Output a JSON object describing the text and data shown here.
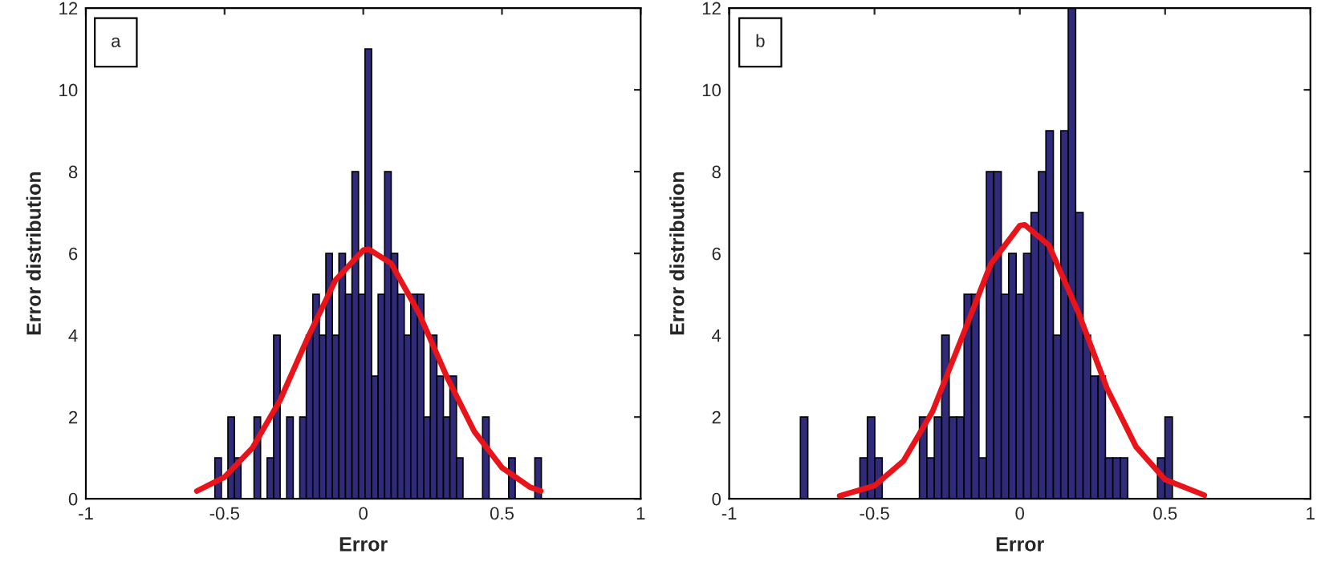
{
  "chart_data": [
    {
      "type": "histogram",
      "xlabel": "Error",
      "ylabel": "Error distribution",
      "annotations": [
        "a"
      ],
      "bins": [
        -0.535,
        -0.5115,
        -0.4879,
        -0.4644,
        -0.4408,
        -0.4173,
        -0.3938,
        -0.3702,
        -0.3467,
        -0.3231,
        -0.2996,
        -0.2761,
        -0.2525,
        -0.229,
        -0.2054,
        -0.1819,
        -0.1584,
        -0.1348,
        -0.1113,
        -0.0877,
        -0.0642,
        -0.0407,
        -0.0171,
        0.0064,
        0.03,
        0.0535,
        0.077,
        0.1006,
        0.1241,
        0.1477,
        0.1712,
        0.1947,
        0.2183,
        0.2418,
        0.2654,
        0.2889,
        0.3124,
        0.336,
        0.3595,
        0.3831,
        0.4066,
        0.4301,
        0.4537,
        0.4772,
        0.5008,
        0.5243,
        0.5478,
        0.5714,
        0.5949,
        0.6185,
        0.642
      ],
      "series": [
        {
          "color": "#2f2a7a",
          "values": [
            1,
            0,
            2,
            1,
            0,
            0,
            2,
            0,
            1,
            4,
            0,
            2,
            0,
            2,
            4,
            5,
            4,
            6,
            4,
            6,
            5,
            8,
            5,
            11,
            3,
            5,
            8,
            6,
            5,
            4,
            5,
            5,
            2,
            4,
            3,
            2,
            3,
            1,
            0,
            0,
            0,
            2,
            0,
            0,
            0,
            1,
            0,
            0,
            0,
            1
          ]
        },
        {
          "type": "line",
          "color": "#e8141a",
          "x": [
            -0.6,
            -0.5,
            -0.4,
            -0.3,
            -0.2,
            -0.1,
            0,
            0.02,
            0.1,
            0.2,
            0.3,
            0.4,
            0.5,
            0.6,
            0.64
          ],
          "values": [
            0.19,
            0.53,
            1.24,
            2.41,
            3.94,
            5.35,
            6.08,
            6.1,
            5.76,
            4.55,
            3.0,
            1.65,
            0.76,
            0.29,
            0.19
          ]
        }
      ],
      "xlim": [
        -1,
        1
      ],
      "xticks": [
        -1,
        -0.5,
        0,
        0.5,
        1
      ],
      "ylim": [
        0,
        12
      ],
      "yticks": [
        0,
        2,
        4,
        6,
        8,
        10,
        12
      ],
      "grid": false,
      "legend": false
    },
    {
      "type": "histogram",
      "xlabel": "Error",
      "ylabel": "Error distribution",
      "annotations": [
        "b"
      ],
      "bins": [
        -0.755,
        -0.7294,
        -0.7038,
        -0.6782,
        -0.6526,
        -0.627,
        -0.6014,
        -0.5758,
        -0.5502,
        -0.5246,
        -0.499,
        -0.4734,
        -0.4478,
        -0.4222,
        -0.3966,
        -0.371,
        -0.3454,
        -0.3198,
        -0.2942,
        -0.2686,
        -0.243,
        -0.2174,
        -0.1918,
        -0.1662,
        -0.1406,
        -0.115,
        -0.0894,
        -0.0638,
        -0.0382,
        -0.0126,
        0.013,
        0.0386,
        0.0642,
        0.0898,
        0.1154,
        0.141,
        0.1666,
        0.1922,
        0.2178,
        0.2434,
        0.269,
        0.2946,
        0.3202,
        0.3458,
        0.3714,
        0.397,
        0.4226,
        0.4482,
        0.4738,
        0.4994,
        0.525
      ],
      "series": [
        {
          "color": "#2f2a7a",
          "values": [
            2,
            0,
            0,
            0,
            0,
            0,
            0,
            0,
            1,
            2,
            1,
            0,
            0,
            0,
            0,
            0,
            2,
            1,
            2,
            4,
            2,
            2,
            5,
            5,
            1,
            8,
            8,
            5,
            6,
            5,
            6,
            7,
            8,
            9,
            4,
            9,
            12,
            7,
            4,
            3,
            3,
            1,
            1,
            1,
            0,
            0,
            0,
            0,
            1,
            2
          ]
        },
        {
          "type": "line",
          "color": "#e8141a",
          "x": [
            -0.62,
            -0.5,
            -0.4,
            -0.3,
            -0.2,
            -0.1,
            0,
            0.017,
            0.1,
            0.2,
            0.3,
            0.4,
            0.5,
            0.635
          ],
          "values": [
            0.07,
            0.32,
            0.93,
            2.14,
            3.93,
            5.74,
            6.68,
            6.7,
            6.2,
            4.58,
            2.7,
            1.27,
            0.47,
            0.09
          ]
        }
      ],
      "xlim": [
        -1,
        1
      ],
      "xticks": [
        -1,
        -0.5,
        0,
        0.5,
        1
      ],
      "ylim": [
        0,
        12
      ],
      "yticks": [
        0,
        2,
        4,
        6,
        8,
        10,
        12
      ],
      "grid": false,
      "legend": false
    }
  ]
}
